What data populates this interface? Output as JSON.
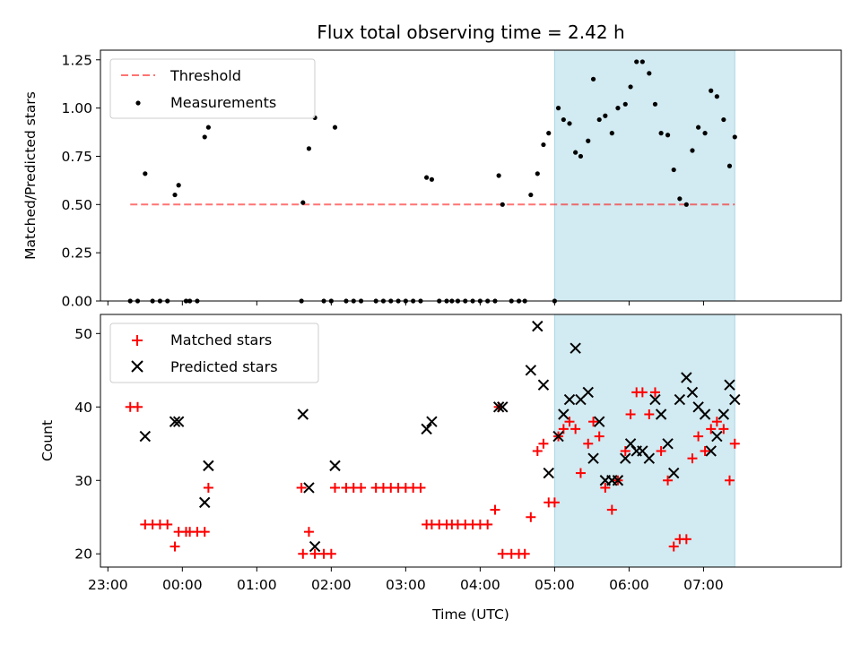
{
  "chart_data": {
    "type": "scatter",
    "title": "Flux total observing time = 2.42 h",
    "xlabel": "Time (UTC)",
    "x_unit": "hours",
    "xlim": [
      -1.1,
      8.85
    ],
    "x_ticks": [
      {
        "value": -1,
        "label": "23:00"
      },
      {
        "value": 0,
        "label": "00:00"
      },
      {
        "value": 1,
        "label": "01:00"
      },
      {
        "value": 2,
        "label": "02:00"
      },
      {
        "value": 3,
        "label": "03:00"
      },
      {
        "value": 4,
        "label": "04:00"
      },
      {
        "value": 5,
        "label": "05:00"
      },
      {
        "value": 6,
        "label": "06:00"
      },
      {
        "value": 7,
        "label": "07:00"
      }
    ],
    "highlight_span": {
      "x0": 5.0,
      "x1": 7.42,
      "color": "#add8e6"
    },
    "panels": [
      {
        "name": "ratio",
        "ylabel": "Matched/Predicted stars",
        "ylim": [
          0,
          1.3
        ],
        "y_ticks": [
          "0.00",
          "0.25",
          "0.50",
          "0.75",
          "1.00",
          "1.25"
        ],
        "legend": {
          "placement": "upper left",
          "entries": [
            "Threshold",
            "Measurements"
          ]
        },
        "threshold": {
          "name": "Threshold",
          "x0": -0.7,
          "x1": 7.42,
          "y": 0.5,
          "color": "#ff0000"
        },
        "measurements": {
          "name": "Measurements",
          "color": "#000000",
          "points": [
            [
              -0.7,
              0
            ],
            [
              -0.6,
              0
            ],
            [
              -0.5,
              0.66
            ],
            [
              -0.4,
              0
            ],
            [
              -0.3,
              0
            ],
            [
              -0.2,
              0
            ],
            [
              -0.1,
              0.55
            ],
            [
              -0.05,
              0.6
            ],
            [
              0.05,
              0
            ],
            [
              0.1,
              0
            ],
            [
              0.2,
              0
            ],
            [
              0.3,
              0.85
            ],
            [
              0.35,
              0.9
            ],
            [
              1.6,
              0
            ],
            [
              1.62,
              0.51
            ],
            [
              1.7,
              0.79
            ],
            [
              1.78,
              0.95
            ],
            [
              1.9,
              0
            ],
            [
              2.0,
              0
            ],
            [
              2.05,
              0.9
            ],
            [
              2.2,
              0
            ],
            [
              2.3,
              0
            ],
            [
              2.4,
              0
            ],
            [
              2.6,
              0
            ],
            [
              2.7,
              0
            ],
            [
              2.8,
              0
            ],
            [
              2.9,
              0
            ],
            [
              3.0,
              0
            ],
            [
              3.1,
              0
            ],
            [
              3.2,
              0
            ],
            [
              3.28,
              0.64
            ],
            [
              3.35,
              0.63
            ],
            [
              3.45,
              0
            ],
            [
              3.55,
              0
            ],
            [
              3.62,
              0
            ],
            [
              3.7,
              0
            ],
            [
              3.8,
              0
            ],
            [
              3.9,
              0
            ],
            [
              4.0,
              0
            ],
            [
              4.1,
              0
            ],
            [
              4.2,
              0
            ],
            [
              4.25,
              0.65
            ],
            [
              4.3,
              0.5
            ],
            [
              4.42,
              0
            ],
            [
              4.52,
              0
            ],
            [
              4.6,
              0
            ],
            [
              4.68,
              0.55
            ],
            [
              4.77,
              0.66
            ],
            [
              4.85,
              0.81
            ],
            [
              4.92,
              0.87
            ],
            [
              5.0,
              0
            ],
            [
              5.05,
              1.0
            ],
            [
              5.12,
              0.94
            ],
            [
              5.2,
              0.92
            ],
            [
              5.28,
              0.77
            ],
            [
              5.35,
              0.75
            ],
            [
              5.45,
              0.83
            ],
            [
              5.52,
              1.15
            ],
            [
              5.6,
              0.94
            ],
            [
              5.68,
              0.96
            ],
            [
              5.77,
              0.87
            ],
            [
              5.85,
              1.0
            ],
            [
              5.95,
              1.02
            ],
            [
              6.02,
              1.11
            ],
            [
              6.1,
              1.24
            ],
            [
              6.18,
              1.24
            ],
            [
              6.27,
              1.18
            ],
            [
              6.35,
              1.02
            ],
            [
              6.43,
              0.87
            ],
            [
              6.52,
              0.86
            ],
            [
              6.6,
              0.68
            ],
            [
              6.68,
              0.53
            ],
            [
              6.77,
              0.5
            ],
            [
              6.85,
              0.78
            ],
            [
              6.93,
              0.9
            ],
            [
              7.02,
              0.87
            ],
            [
              7.1,
              1.09
            ],
            [
              7.18,
              1.06
            ],
            [
              7.27,
              0.94
            ],
            [
              7.35,
              0.7
            ],
            [
              7.42,
              0.85
            ]
          ]
        }
      },
      {
        "name": "counts",
        "ylabel": "Count",
        "ylim": [
          18.2,
          52.6
        ],
        "y_ticks": [
          20,
          30,
          40,
          50
        ],
        "legend": {
          "placement": "upper left",
          "entries": [
            "Matched stars",
            "Predicted stars"
          ]
        },
        "matched": {
          "name": "Matched stars",
          "marker": "+",
          "color": "#ff0000",
          "points": [
            [
              -0.7,
              40
            ],
            [
              -0.6,
              40
            ],
            [
              -0.5,
              24
            ],
            [
              -0.4,
              24
            ],
            [
              -0.3,
              24
            ],
            [
              -0.2,
              24
            ],
            [
              -0.1,
              21
            ],
            [
              -0.05,
              23
            ],
            [
              0.05,
              23
            ],
            [
              0.1,
              23
            ],
            [
              0.2,
              23
            ],
            [
              0.3,
              23
            ],
            [
              0.35,
              29
            ],
            [
              1.6,
              29
            ],
            [
              1.62,
              20
            ],
            [
              1.7,
              23
            ],
            [
              1.78,
              20
            ],
            [
              1.9,
              20
            ],
            [
              2.0,
              20
            ],
            [
              2.05,
              29
            ],
            [
              2.2,
              29
            ],
            [
              2.3,
              29
            ],
            [
              2.4,
              29
            ],
            [
              2.6,
              29
            ],
            [
              2.7,
              29
            ],
            [
              2.8,
              29
            ],
            [
              2.9,
              29
            ],
            [
              3.0,
              29
            ],
            [
              3.1,
              29
            ],
            [
              3.2,
              29
            ],
            [
              3.28,
              24
            ],
            [
              3.35,
              24
            ],
            [
              3.45,
              24
            ],
            [
              3.55,
              24
            ],
            [
              3.62,
              24
            ],
            [
              3.7,
              24
            ],
            [
              3.8,
              24
            ],
            [
              3.9,
              24
            ],
            [
              4.0,
              24
            ],
            [
              4.1,
              24
            ],
            [
              4.2,
              26
            ],
            [
              4.25,
              40
            ],
            [
              4.3,
              20
            ],
            [
              4.42,
              20
            ],
            [
              4.52,
              20
            ],
            [
              4.6,
              20
            ],
            [
              4.68,
              25
            ],
            [
              4.77,
              34
            ],
            [
              4.85,
              35
            ],
            [
              4.92,
              27
            ],
            [
              5.0,
              27
            ],
            [
              5.05,
              36
            ],
            [
              5.12,
              37
            ],
            [
              5.2,
              38
            ],
            [
              5.28,
              37
            ],
            [
              5.35,
              31
            ],
            [
              5.45,
              35
            ],
            [
              5.52,
              38
            ],
            [
              5.6,
              36
            ],
            [
              5.68,
              29
            ],
            [
              5.77,
              26
            ],
            [
              5.85,
              30
            ],
            [
              5.95,
              34
            ],
            [
              6.02,
              39
            ],
            [
              6.1,
              42
            ],
            [
              6.18,
              42
            ],
            [
              6.27,
              39
            ],
            [
              6.35,
              42
            ],
            [
              6.43,
              34
            ],
            [
              6.52,
              30
            ],
            [
              6.6,
              21
            ],
            [
              6.68,
              22
            ],
            [
              6.77,
              22
            ],
            [
              6.85,
              33
            ],
            [
              6.93,
              36
            ],
            [
              7.02,
              34
            ],
            [
              7.1,
              37
            ],
            [
              7.18,
              38
            ],
            [
              7.27,
              37
            ],
            [
              7.35,
              30
            ],
            [
              7.42,
              35
            ]
          ]
        },
        "predicted": {
          "name": "Predicted stars",
          "marker": "x",
          "color": "#000000",
          "points": [
            [
              -0.5,
              36
            ],
            [
              -0.1,
              38
            ],
            [
              -0.05,
              38
            ],
            [
              0.3,
              27
            ],
            [
              0.35,
              32
            ],
            [
              1.62,
              39
            ],
            [
              1.7,
              29
            ],
            [
              1.78,
              21
            ],
            [
              2.05,
              32
            ],
            [
              3.28,
              37
            ],
            [
              3.35,
              38
            ],
            [
              4.25,
              40
            ],
            [
              4.3,
              40
            ],
            [
              4.68,
              45
            ],
            [
              4.77,
              51
            ],
            [
              4.85,
              43
            ],
            [
              4.92,
              31
            ],
            [
              5.05,
              36
            ],
            [
              5.12,
              39
            ],
            [
              5.2,
              41
            ],
            [
              5.28,
              48
            ],
            [
              5.35,
              41
            ],
            [
              5.45,
              42
            ],
            [
              5.52,
              33
            ],
            [
              5.6,
              38
            ],
            [
              5.68,
              30
            ],
            [
              5.77,
              30
            ],
            [
              5.85,
              30
            ],
            [
              5.95,
              33
            ],
            [
              6.02,
              35
            ],
            [
              6.1,
              34
            ],
            [
              6.18,
              34
            ],
            [
              6.27,
              33
            ],
            [
              6.35,
              41
            ],
            [
              6.43,
              39
            ],
            [
              6.52,
              35
            ],
            [
              6.6,
              31
            ],
            [
              6.68,
              41
            ],
            [
              6.77,
              44
            ],
            [
              6.85,
              42
            ],
            [
              6.93,
              40
            ],
            [
              7.02,
              39
            ],
            [
              7.1,
              34
            ],
            [
              7.18,
              36
            ],
            [
              7.27,
              39
            ],
            [
              7.35,
              43
            ],
            [
              7.42,
              41
            ]
          ]
        }
      }
    ]
  }
}
